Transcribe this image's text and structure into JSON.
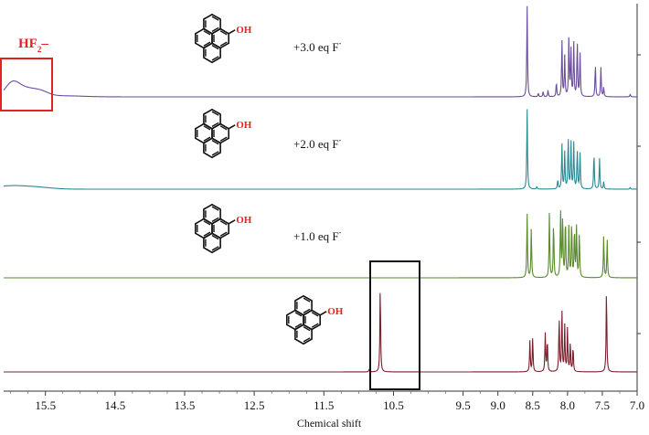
{
  "chart_data": {
    "type": "line",
    "xlabel": "Chemical shift",
    "x_reversed": true,
    "xlim": [
      16.1,
      7.0
    ],
    "ticks": [
      {
        "v": 15.5,
        "label": "15.5"
      },
      {
        "v": 14.5,
        "label": "14.5"
      },
      {
        "v": 13.5,
        "label": "13.5"
      },
      {
        "v": 12.5,
        "label": "12.5"
      },
      {
        "v": 11.5,
        "label": "11.5"
      },
      {
        "v": 10.5,
        "label": "10.5"
      },
      {
        "v": 9.5,
        "label": "9.5"
      },
      {
        "v": 9.0,
        "label": "9.0"
      },
      {
        "v": 8.5,
        "label": "8.5"
      },
      {
        "v": 8.0,
        "label": "8.0"
      },
      {
        "v": 7.5,
        "label": "7.5"
      },
      {
        "v": 7.0,
        "label": "7.0"
      }
    ],
    "series": [
      {
        "name": "+3.0 eq F",
        "color": "#6a4c9c",
        "broad": [
          [
            15.98,
            0.14,
            0.65
          ],
          [
            15.78,
            0.22,
            0.45
          ],
          [
            15.55,
            0.15,
            0.18
          ],
          [
            15.25,
            0.4,
            0.06
          ]
        ],
        "peaks": [
          [
            8.58,
            5.0
          ],
          [
            8.42,
            0.2
          ],
          [
            8.35,
            0.3
          ],
          [
            8.28,
            0.35
          ],
          [
            8.16,
            0.8
          ],
          [
            8.08,
            3.1
          ],
          [
            8.04,
            2.2
          ],
          [
            7.98,
            3.3
          ],
          [
            7.95,
            2.6
          ],
          [
            7.91,
            2.9
          ],
          [
            7.86,
            3.1
          ],
          [
            7.82,
            2.4
          ],
          [
            7.6,
            1.8
          ],
          [
            7.52,
            1.6
          ],
          [
            7.48,
            0.5
          ],
          [
            7.1,
            0.15
          ]
        ]
      },
      {
        "name": "+2.0 eq F",
        "color": "#2a8a94",
        "broad": [
          [
            16.0,
            0.35,
            0.18
          ],
          [
            15.6,
            0.3,
            0.08
          ]
        ],
        "peaks": [
          [
            8.58,
            4.4
          ],
          [
            8.44,
            0.15
          ],
          [
            8.14,
            0.5
          ],
          [
            8.08,
            2.5
          ],
          [
            8.04,
            2.0
          ],
          [
            7.99,
            2.9
          ],
          [
            7.95,
            2.6
          ],
          [
            7.91,
            2.5
          ],
          [
            7.86,
            2.2
          ],
          [
            7.82,
            2.0
          ],
          [
            7.62,
            2.0
          ],
          [
            7.54,
            1.7
          ],
          [
            7.48,
            0.4
          ],
          [
            7.1,
            0.1
          ]
        ]
      },
      {
        "name": "+1.0 eq F",
        "color": "#5a8a2c",
        "broad": [],
        "peaks": [
          [
            8.58,
            3.5
          ],
          [
            8.52,
            2.7
          ],
          [
            8.26,
            3.6
          ],
          [
            8.2,
            3.1
          ],
          [
            8.1,
            3.7
          ],
          [
            8.07,
            3.5
          ],
          [
            8.03,
            3.3
          ],
          [
            7.98,
            2.9
          ],
          [
            7.94,
            3.1
          ],
          [
            7.9,
            2.7
          ],
          [
            7.87,
            2.8
          ],
          [
            7.83,
            2.5
          ],
          [
            7.48,
            2.3
          ],
          [
            7.43,
            2.1
          ]
        ]
      },
      {
        "name": "",
        "color": "#7a1f2b",
        "broad": [],
        "peaks": [
          [
            10.69,
            4.8
          ],
          [
            10.85,
            0.15
          ],
          [
            8.54,
            1.7
          ],
          [
            8.5,
            1.9
          ],
          [
            8.32,
            2.1
          ],
          [
            8.29,
            1.8
          ],
          [
            8.12,
            3.0
          ],
          [
            8.08,
            3.3
          ],
          [
            8.04,
            2.5
          ],
          [
            8.0,
            2.4
          ],
          [
            7.96,
            1.6
          ],
          [
            7.92,
            1.4
          ],
          [
            7.44,
            4.6
          ]
        ]
      }
    ],
    "annotations": {
      "hf2_label": "HF",
      "hf2_sub": "2",
      "hf2_dash": "–",
      "oh_label": "OH",
      "eq3": "+3.0 eq F",
      "eq2": "+2.0 eq F",
      "eq1": "+1.0 eq F",
      "fluoride_charge": "-"
    }
  }
}
